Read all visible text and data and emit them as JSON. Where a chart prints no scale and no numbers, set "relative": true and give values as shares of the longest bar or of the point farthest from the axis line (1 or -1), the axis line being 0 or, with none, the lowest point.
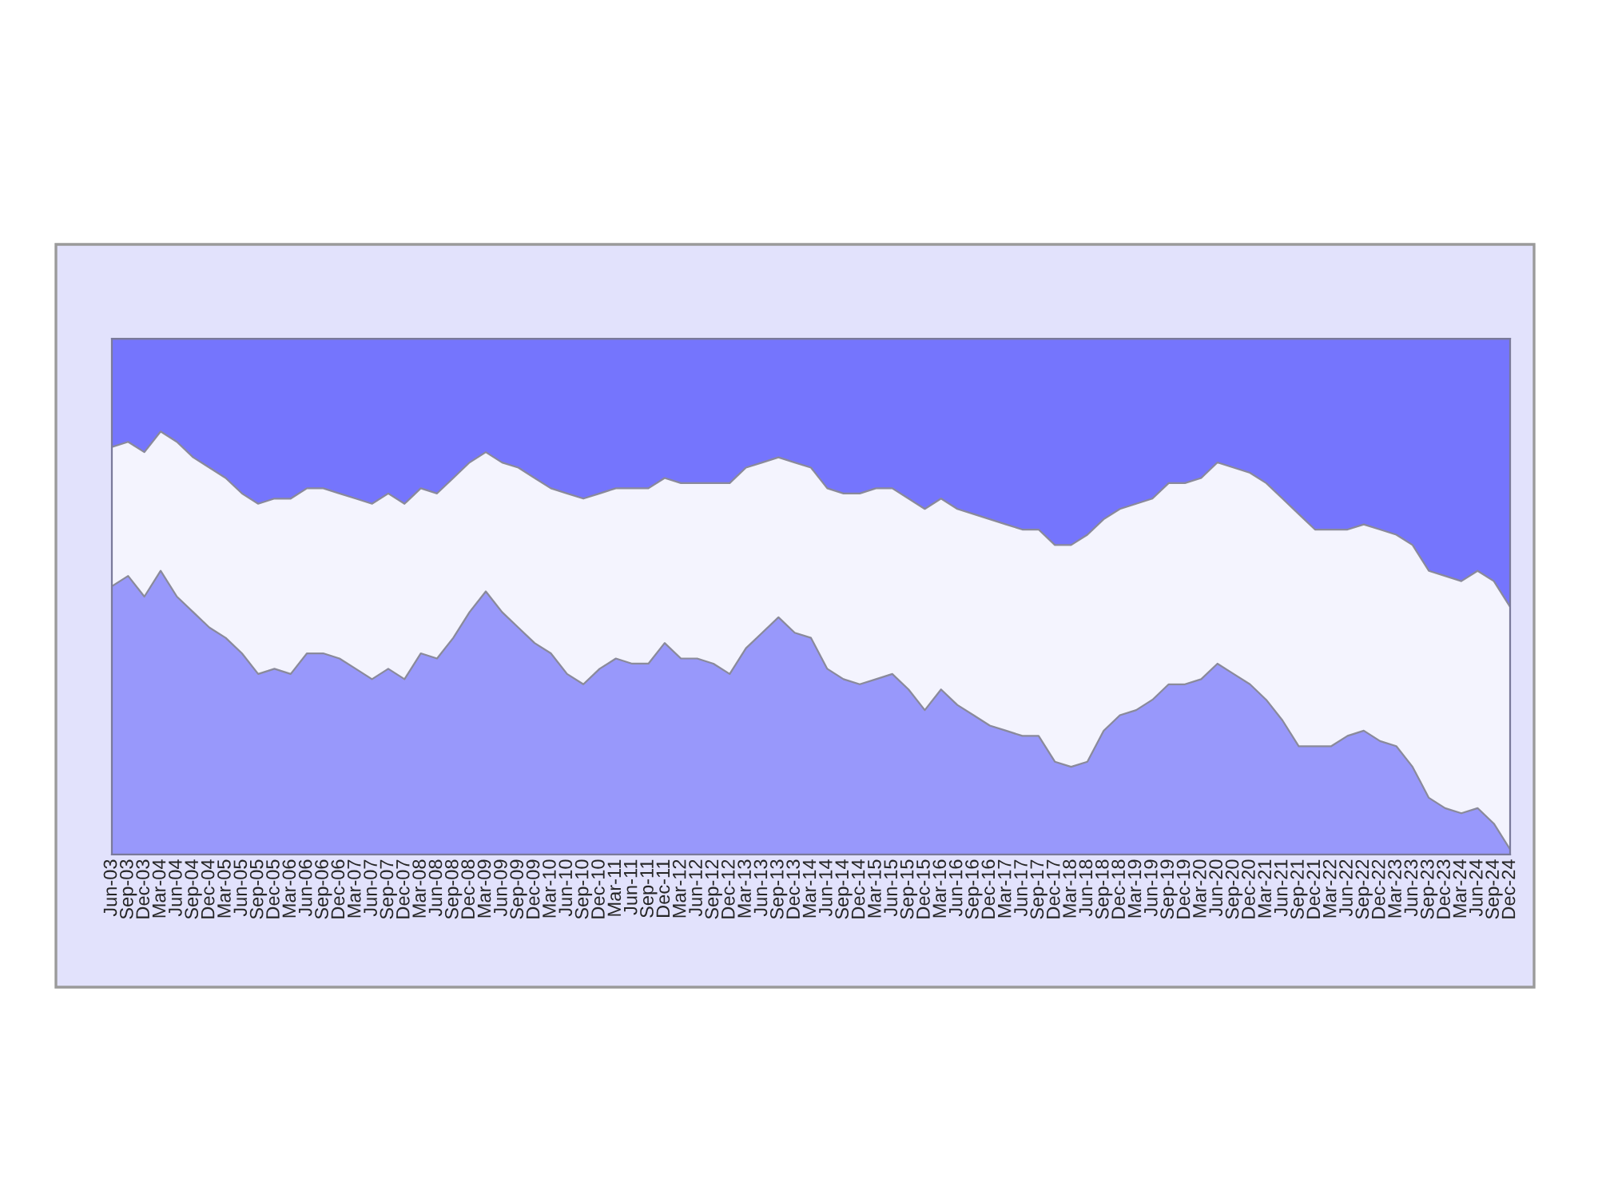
{
  "chart_data": {
    "type": "area",
    "stacked": true,
    "relative": true,
    "legend": false,
    "categories": [
      "Jun-03",
      "Sep-03",
      "Dec-03",
      "Mar-04",
      "Jun-04",
      "Sep-04",
      "Dec-04",
      "Mar-05",
      "Jun-05",
      "Sep-05",
      "Dec-05",
      "Mar-06",
      "Jun-06",
      "Sep-06",
      "Dec-06",
      "Mar-07",
      "Jun-07",
      "Sep-07",
      "Dec-07",
      "Mar-08",
      "Jun-08",
      "Sep-08",
      "Dec-08",
      "Mar-09",
      "Jun-09",
      "Sep-09",
      "Dec-09",
      "Mar-10",
      "Jun-10",
      "Sep-10",
      "Dec-10",
      "Mar-11",
      "Jun-11",
      "Sep-11",
      "Dec-11",
      "Mar-12",
      "Jun-12",
      "Sep-12",
      "Dec-12",
      "Mar-13",
      "Jun-13",
      "Sep-13",
      "Dec-13",
      "Mar-14",
      "Jun-14",
      "Sep-14",
      "Dec-14",
      "Mar-15",
      "Jun-15",
      "Sep-15",
      "Dec-15",
      "Mar-16",
      "Jun-16",
      "Sep-16",
      "Dec-16",
      "Mar-17",
      "Jun-17",
      "Sep-17",
      "Dec-17",
      "Mar-18",
      "Jun-18",
      "Sep-18",
      "Dec-18",
      "Mar-19",
      "Jun-19",
      "Sep-19",
      "Dec-19",
      "Mar-20",
      "Jun-20",
      "Sep-20",
      "Dec-20",
      "Mar-21",
      "Jun-21",
      "Sep-21",
      "Dec-21",
      "Mar-22",
      "Jun-22",
      "Sep-22",
      "Dec-22",
      "Mar-23",
      "Jun-23",
      "Sep-23",
      "Dec-23",
      "Mar-24",
      "Jun-24",
      "Sep-24",
      "Dec-24"
    ],
    "series": [
      {
        "color": "#9898fb",
        "values": [
          0.52,
          0.54,
          0.5,
          0.55,
          0.5,
          0.47,
          0.44,
          0.42,
          0.39,
          0.35,
          0.36,
          0.35,
          0.39,
          0.39,
          0.38,
          0.36,
          0.34,
          0.36,
          0.34,
          0.39,
          0.38,
          0.42,
          0.47,
          0.51,
          0.47,
          0.44,
          0.41,
          0.39,
          0.35,
          0.33,
          0.36,
          0.38,
          0.37,
          0.37,
          0.41,
          0.38,
          0.38,
          0.37,
          0.35,
          0.4,
          0.43,
          0.46,
          0.43,
          0.42,
          0.36,
          0.34,
          0.33,
          0.34,
          0.35,
          0.32,
          0.28,
          0.32,
          0.29,
          0.27,
          0.25,
          0.24,
          0.23,
          0.23,
          0.18,
          0.17,
          0.18,
          0.24,
          0.27,
          0.28,
          0.3,
          0.33,
          0.33,
          0.34,
          0.37,
          0.35,
          0.33,
          0.3,
          0.26,
          0.21,
          0.21,
          0.21,
          0.23,
          0.24,
          0.22,
          0.21,
          0.17,
          0.11,
          0.09,
          0.08,
          0.09,
          0.06,
          0.01
        ]
      },
      {
        "color": "#f4f4fe",
        "values": [
          0.27,
          0.26,
          0.28,
          0.27,
          0.3,
          0.3,
          0.31,
          0.31,
          0.31,
          0.33,
          0.33,
          0.34,
          0.32,
          0.32,
          0.32,
          0.33,
          0.34,
          0.34,
          0.34,
          0.32,
          0.32,
          0.31,
          0.29,
          0.27,
          0.29,
          0.31,
          0.32,
          0.32,
          0.35,
          0.36,
          0.34,
          0.33,
          0.34,
          0.34,
          0.32,
          0.34,
          0.34,
          0.35,
          0.37,
          0.35,
          0.33,
          0.31,
          0.33,
          0.33,
          0.35,
          0.36,
          0.37,
          0.37,
          0.36,
          0.37,
          0.39,
          0.37,
          0.38,
          0.39,
          0.4,
          0.4,
          0.4,
          0.4,
          0.42,
          0.43,
          0.44,
          0.41,
          0.4,
          0.4,
          0.39,
          0.39,
          0.39,
          0.39,
          0.39,
          0.4,
          0.41,
          0.42,
          0.43,
          0.45,
          0.42,
          0.42,
          0.4,
          0.4,
          0.41,
          0.41,
          0.43,
          0.44,
          0.45,
          0.45,
          0.46,
          0.47,
          0.47
        ]
      },
      {
        "color": "#7575fd",
        "values": [
          0.21,
          0.2,
          0.22,
          0.18,
          0.2,
          0.23,
          0.25,
          0.27,
          0.3,
          0.32,
          0.31,
          0.31,
          0.29,
          0.29,
          0.3,
          0.31,
          0.32,
          0.3,
          0.32,
          0.29,
          0.3,
          0.27,
          0.24,
          0.22,
          0.24,
          0.25,
          0.27,
          0.29,
          0.3,
          0.31,
          0.3,
          0.29,
          0.29,
          0.29,
          0.27,
          0.28,
          0.28,
          0.28,
          0.28,
          0.25,
          0.24,
          0.23,
          0.24,
          0.25,
          0.29,
          0.3,
          0.3,
          0.29,
          0.29,
          0.31,
          0.33,
          0.31,
          0.33,
          0.34,
          0.35,
          0.36,
          0.37,
          0.37,
          0.4,
          0.4,
          0.38,
          0.35,
          0.33,
          0.32,
          0.31,
          0.28,
          0.28,
          0.27,
          0.24,
          0.25,
          0.26,
          0.28,
          0.31,
          0.34,
          0.37,
          0.37,
          0.37,
          0.36,
          0.37,
          0.38,
          0.4,
          0.45,
          0.46,
          0.47,
          0.45,
          0.47,
          0.52
        ]
      }
    ]
  }
}
